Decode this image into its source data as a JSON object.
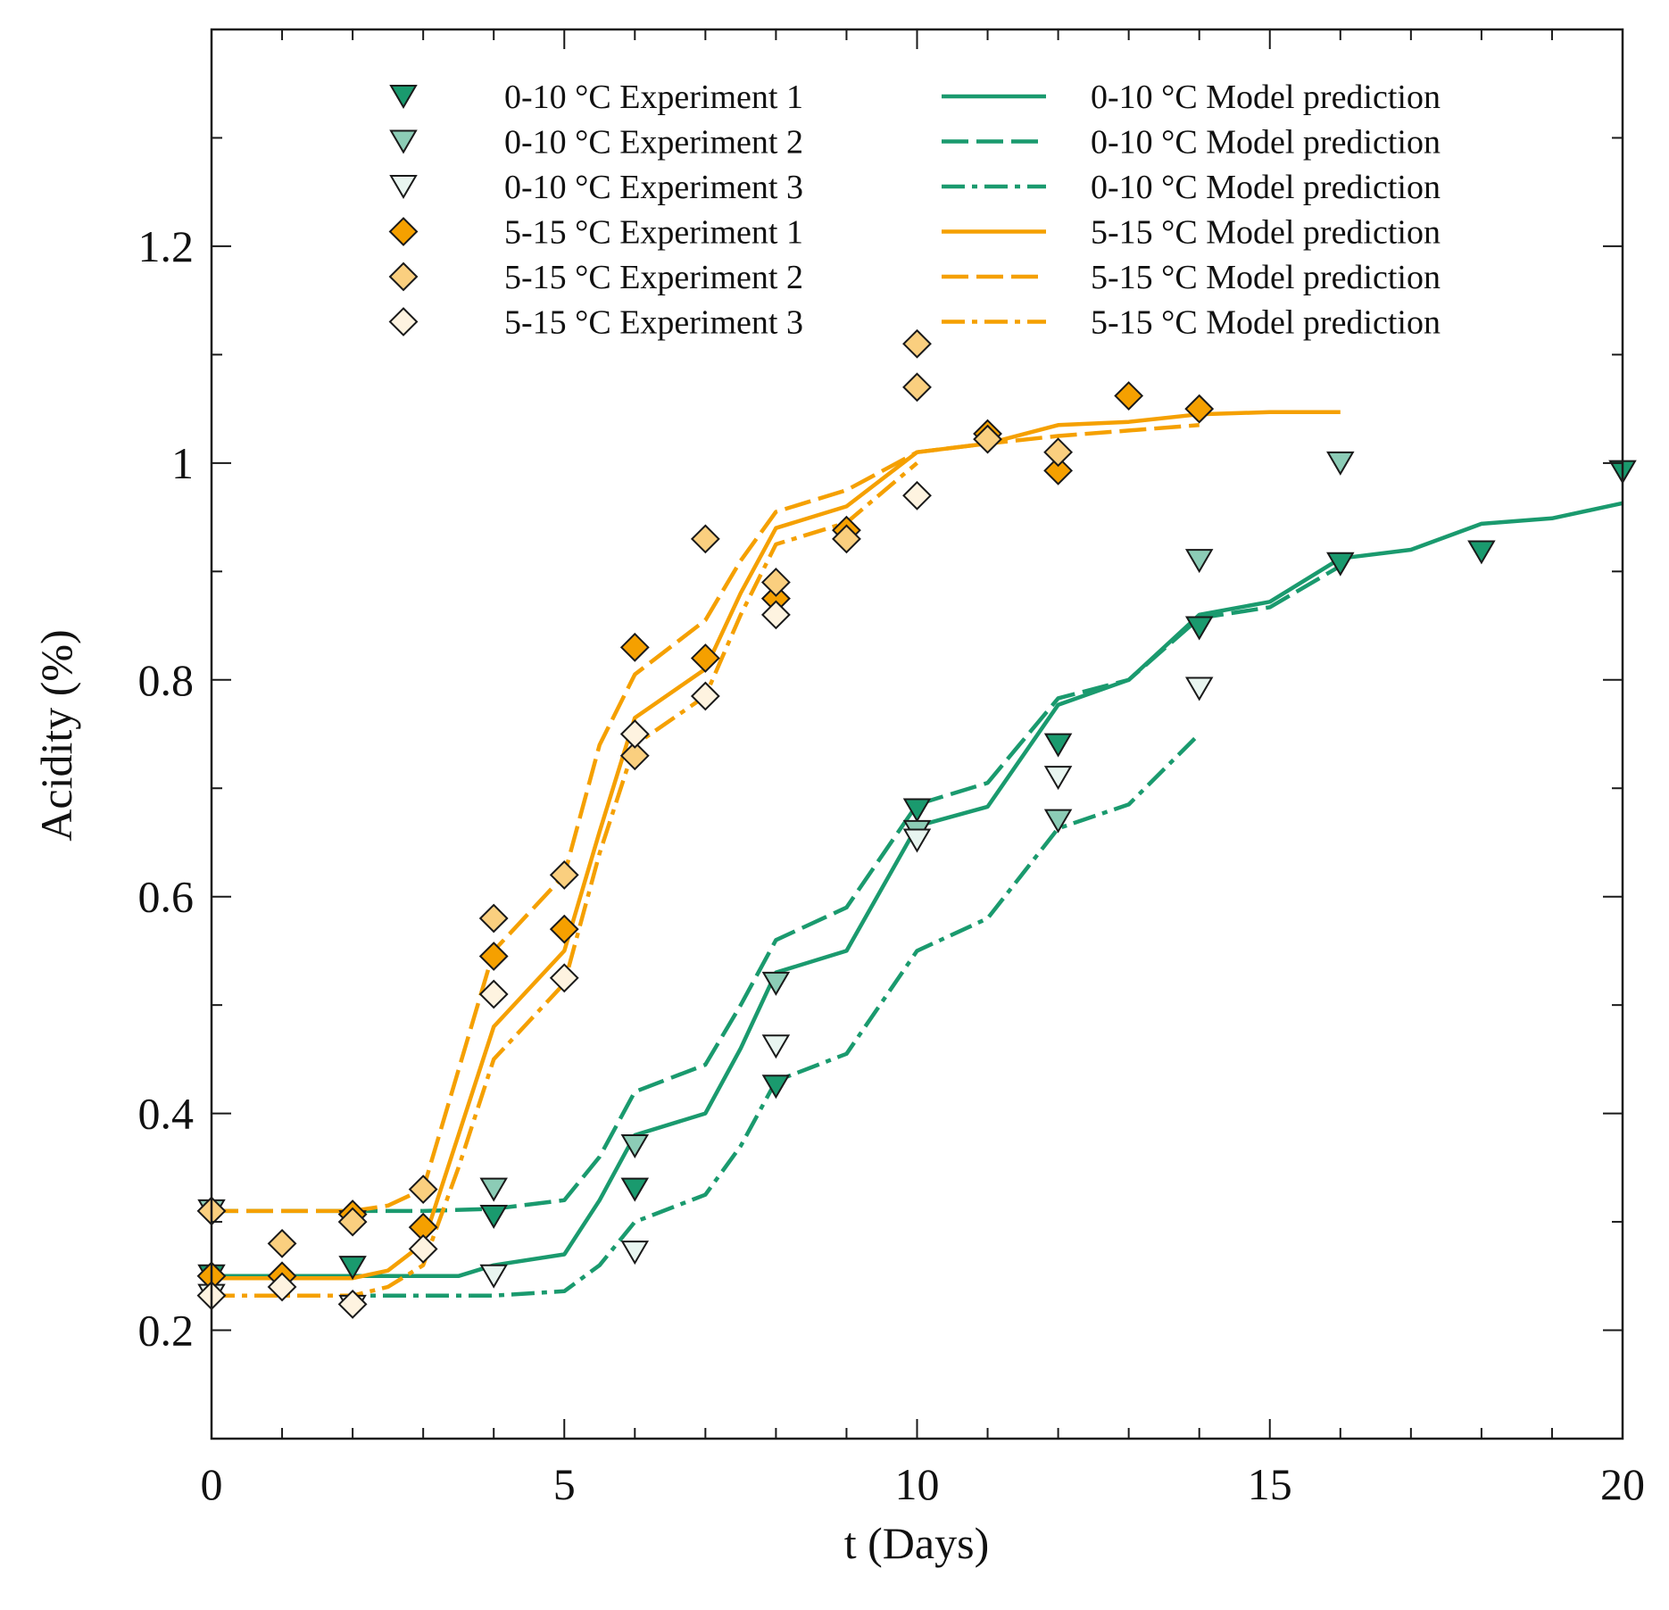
{
  "chart_data": {
    "type": "scatter",
    "title": "",
    "xlabel": "t (Days)",
    "ylabel": "Acidity (%)",
    "xlim": [
      0,
      20
    ],
    "ylim": [
      0.1,
      1.4
    ],
    "x_ticks": [
      {
        "value": 0,
        "label": "0"
      },
      {
        "value": 5,
        "label": "5"
      },
      {
        "value": 10,
        "label": "10"
      },
      {
        "value": 15,
        "label": "15"
      },
      {
        "value": 20,
        "label": "20"
      }
    ],
    "y_ticks": [
      {
        "value": 0.2,
        "label": "0.2"
      },
      {
        "value": 0.4,
        "label": "0.4"
      },
      {
        "value": 0.6,
        "label": "0.6"
      },
      {
        "value": 0.8,
        "label": "0.8"
      },
      {
        "value": 1.0,
        "label": "1"
      },
      {
        "value": 1.2,
        "label": "1.2"
      }
    ],
    "grid": false,
    "legend_position": "top",
    "series": [
      {
        "name": "0-10 °C Experiment 1",
        "kind": "scatter",
        "marker": "triangle-down",
        "color": "#1a9a6e",
        "fill_opacity": 1.0,
        "x": [
          0,
          2,
          4,
          6,
          8,
          10,
          12,
          14,
          16,
          18,
          20
        ],
        "y": [
          0.25,
          0.258,
          0.305,
          0.33,
          0.425,
          0.68,
          0.74,
          0.848,
          0.907,
          0.918,
          0.992
        ]
      },
      {
        "name": "0-10 °C Experiment 2",
        "kind": "scatter",
        "marker": "triangle-down",
        "color": "#1a9a6e",
        "fill_opacity": 0.5,
        "x": [
          0,
          2,
          4,
          6,
          8,
          10,
          12,
          14,
          16
        ],
        "y": [
          0.31,
          0.3,
          0.33,
          0.37,
          0.52,
          0.66,
          0.67,
          0.91,
          1.0
        ]
      },
      {
        "name": "0-10 °C Experiment 3",
        "kind": "scatter",
        "marker": "triangle-down",
        "color": "#1a9a6e",
        "fill_opacity": 0.1,
        "x": [
          0,
          2,
          4,
          6,
          8,
          10,
          12,
          14
        ],
        "y": [
          0.232,
          0.222,
          0.25,
          0.272,
          0.462,
          0.652,
          0.71,
          0.792
        ]
      },
      {
        "name": "5-15 °C Experiment 1",
        "kind": "scatter",
        "marker": "diamond",
        "color": "#f5a000",
        "fill_opacity": 1.0,
        "x": [
          0,
          1,
          2,
          3,
          4,
          5,
          6,
          7,
          8,
          8,
          9,
          11,
          12,
          13,
          14
        ],
        "y": [
          0.25,
          0.25,
          0.307,
          0.295,
          0.545,
          0.57,
          0.83,
          0.82,
          0.875,
          0.875,
          0.938,
          1.027,
          0.993,
          1.062,
          1.05
        ]
      },
      {
        "name": "5-15 °C Experiment 2",
        "kind": "scatter",
        "marker": "diamond",
        "color": "#f5a000",
        "fill_opacity": 0.5,
        "x": [
          0,
          1,
          2,
          3,
          4,
          5,
          6,
          7,
          8,
          9,
          10,
          10,
          11,
          12
        ],
        "y": [
          0.31,
          0.28,
          0.3,
          0.33,
          0.58,
          0.62,
          0.73,
          0.93,
          0.89,
          0.93,
          1.11,
          1.07,
          1.022,
          1.01
        ]
      },
      {
        "name": "5-15 °C Experiment 3",
        "kind": "scatter",
        "marker": "diamond",
        "color": "#f5a000",
        "fill_opacity": 0.12,
        "x": [
          0,
          1,
          2,
          3,
          4,
          5,
          6,
          7,
          8,
          10
        ],
        "y": [
          0.232,
          0.24,
          0.224,
          0.275,
          0.51,
          0.525,
          0.75,
          0.785,
          0.86,
          0.97
        ]
      },
      {
        "name": "0-10 °C Model prediction",
        "kind": "line",
        "style": "solid",
        "color": "#1a9a6e",
        "x": [
          0,
          1,
          2,
          3,
          3.5,
          4,
          5,
          5.5,
          6,
          7,
          7.5,
          8,
          9,
          10,
          11,
          12,
          13,
          14,
          15,
          16,
          17,
          18,
          19,
          20
        ],
        "y": [
          0.25,
          0.25,
          0.25,
          0.25,
          0.25,
          0.26,
          0.27,
          0.32,
          0.38,
          0.4,
          0.46,
          0.53,
          0.55,
          0.665,
          0.683,
          0.777,
          0.8,
          0.86,
          0.872,
          0.912,
          0.92,
          0.944,
          0.949,
          0.963
        ]
      },
      {
        "name": "0-10 °C Model prediction",
        "kind": "line",
        "style": "dashed",
        "color": "#1a9a6e",
        "x": [
          0,
          1,
          2,
          3,
          4,
          5,
          5.5,
          6,
          7,
          7.5,
          8,
          9,
          10,
          11,
          12,
          13,
          14,
          15,
          16
        ],
        "y": [
          0.31,
          0.31,
          0.31,
          0.31,
          0.312,
          0.32,
          0.36,
          0.42,
          0.445,
          0.5,
          0.56,
          0.59,
          0.685,
          0.705,
          0.783,
          0.8,
          0.857,
          0.867,
          0.905
        ]
      },
      {
        "name": "0-10 °C Model prediction",
        "kind": "line",
        "style": "dashdot",
        "color": "#1a9a6e",
        "x": [
          0,
          1,
          2,
          3,
          4,
          5,
          5.5,
          6,
          7,
          7.5,
          8,
          9,
          10,
          11,
          12,
          13,
          14
        ],
        "y": [
          0.232,
          0.232,
          0.232,
          0.232,
          0.232,
          0.236,
          0.26,
          0.3,
          0.325,
          0.37,
          0.43,
          0.455,
          0.55,
          0.58,
          0.663,
          0.685,
          0.75
        ]
      },
      {
        "name": "5-15 °C Model prediction",
        "kind": "line",
        "style": "solid",
        "color": "#f5a000",
        "x": [
          0,
          1,
          2,
          2.5,
          3,
          3.5,
          4,
          5,
          5.5,
          6,
          7,
          7.5,
          8,
          9,
          10,
          11,
          12,
          13,
          14,
          15,
          16
        ],
        "y": [
          0.248,
          0.248,
          0.248,
          0.255,
          0.28,
          0.38,
          0.48,
          0.55,
          0.66,
          0.765,
          0.81,
          0.88,
          0.94,
          0.96,
          1.01,
          1.018,
          1.035,
          1.038,
          1.045,
          1.047,
          1.047
        ]
      },
      {
        "name": "5-15 °C Model prediction",
        "kind": "line",
        "style": "dashed",
        "color": "#f5a000",
        "x": [
          0,
          1,
          2,
          2.5,
          3,
          3.5,
          4,
          5,
          5.5,
          6,
          7,
          7.5,
          8,
          9,
          10,
          11,
          12,
          13,
          14
        ],
        "y": [
          0.31,
          0.31,
          0.31,
          0.315,
          0.33,
          0.44,
          0.55,
          0.62,
          0.74,
          0.805,
          0.855,
          0.91,
          0.955,
          0.975,
          1.01,
          1.018,
          1.025,
          1.03,
          1.035
        ]
      },
      {
        "name": "5-15 °C Model prediction",
        "kind": "line",
        "style": "dashdot",
        "color": "#f5a000",
        "x": [
          0,
          1,
          2,
          2.5,
          3,
          3.5,
          4,
          5,
          5.5,
          6,
          7,
          7.5,
          8,
          9,
          10
        ],
        "y": [
          0.232,
          0.232,
          0.232,
          0.24,
          0.26,
          0.35,
          0.45,
          0.52,
          0.64,
          0.74,
          0.785,
          0.86,
          0.925,
          0.945,
          1.0
        ]
      }
    ]
  }
}
